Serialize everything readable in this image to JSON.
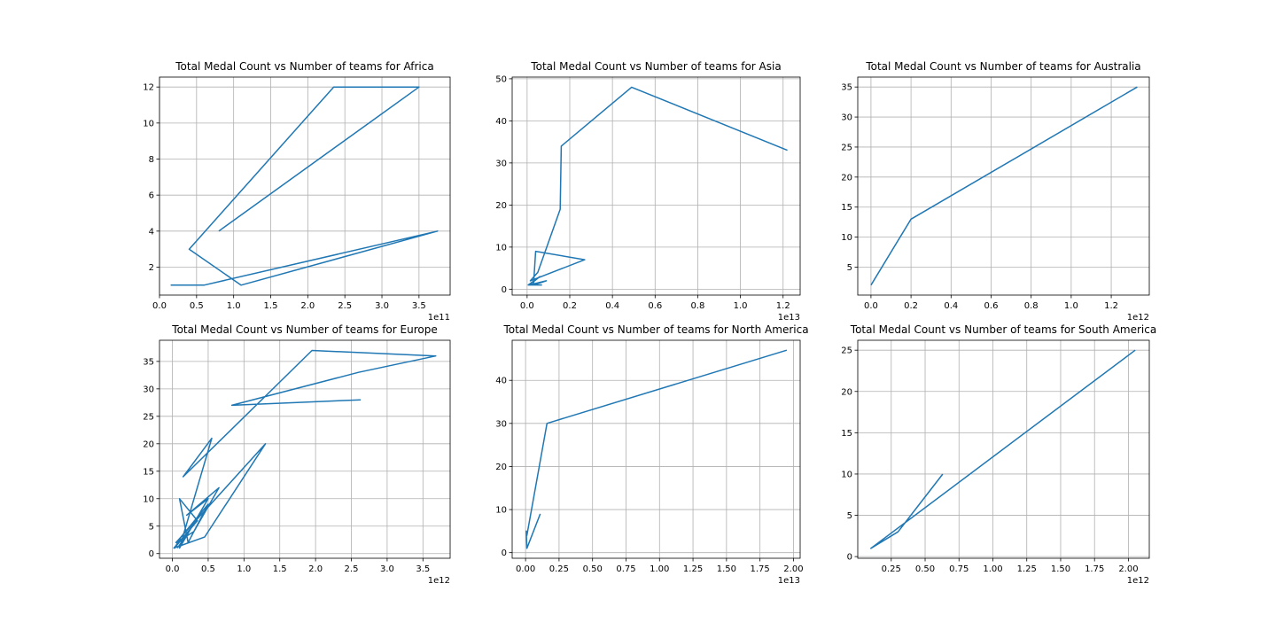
{
  "figure": {
    "background": "#ffffff",
    "line_color": "#1f77b4",
    "grid_color": "#b0b0b0"
  },
  "chart_data": [
    {
      "type": "line",
      "title": "Total Medal Count vs Number of teams for Africa",
      "xlabel": "",
      "ylabel": "",
      "x_offset_label": "1e11",
      "xlim": [
        0,
        3.92
      ],
      "ylim": [
        0.45,
        12.55
      ],
      "xticks": [
        0,
        0.5,
        1.0,
        1.5,
        2.0,
        2.5,
        3.0,
        3.5
      ],
      "xtick_labels": [
        "0.0",
        "0.5",
        "1.0",
        "1.5",
        "2.0",
        "2.5",
        "3.0",
        "3.5"
      ],
      "yticks": [
        2,
        4,
        6,
        8,
        10,
        12
      ],
      "ytick_labels": [
        "2",
        "4",
        "6",
        "8",
        "10",
        "12"
      ],
      "grid": true,
      "series": [
        {
          "x": [
            0.8,
            3.5,
            2.35,
            0.4,
            1.1,
            3.75,
            0.6,
            0.15
          ],
          "y": [
            4,
            12,
            12,
            3,
            1,
            4,
            1,
            1
          ]
        }
      ]
    },
    {
      "type": "line",
      "title": "Total Medal Count vs Number of teams for Asia",
      "xlabel": "",
      "ylabel": "",
      "x_offset_label": "1e13",
      "xlim": [
        -0.07,
        1.28
      ],
      "ylim": [
        -1.4,
        50.4
      ],
      "xticks": [
        0,
        0.2,
        0.4,
        0.6,
        0.8,
        1.0,
        1.2
      ],
      "xtick_labels": [
        "0.0",
        "0.2",
        "0.4",
        "0.6",
        "0.8",
        "1.0",
        "1.2"
      ],
      "yticks": [
        0,
        10,
        20,
        30,
        40,
        50
      ],
      "ytick_labels": [
        "0",
        "10",
        "20",
        "30",
        "40",
        "50"
      ],
      "grid": true,
      "series": [
        {
          "x": [
            1.22,
            0.49,
            0.16,
            0.155,
            0.05,
            0.015,
            0.27,
            0.04,
            0.03,
            0.09,
            0.01,
            0.06,
            0.005,
            0.07
          ],
          "y": [
            33,
            48,
            34,
            19,
            4,
            2,
            7,
            9,
            1,
            2,
            1,
            3,
            1,
            1
          ]
        }
      ]
    },
    {
      "type": "line",
      "title": "Total Medal Count vs Number of teams for Australia",
      "xlabel": "",
      "ylabel": "",
      "x_offset_label": "1e12",
      "xlim": [
        -0.066,
        1.39
      ],
      "ylim": [
        0.35,
        36.65
      ],
      "xticks": [
        0,
        0.2,
        0.4,
        0.6,
        0.8,
        1.0,
        1.2
      ],
      "xtick_labels": [
        "0.0",
        "0.2",
        "0.4",
        "0.6",
        "0.8",
        "1.0",
        "1.2"
      ],
      "yticks": [
        5,
        10,
        15,
        20,
        25,
        30,
        35
      ],
      "ytick_labels": [
        "5",
        "10",
        "15",
        "20",
        "25",
        "30",
        "35"
      ],
      "grid": true,
      "series": [
        {
          "x": [
            0.0,
            0.2,
            1.33
          ],
          "y": [
            2,
            13,
            35
          ]
        }
      ]
    },
    {
      "type": "line",
      "title": "Total Medal Count vs Number of teams for Europe",
      "xlabel": "",
      "ylabel": "",
      "x_offset_label": "1e12",
      "xlim": [
        -0.18,
        3.88
      ],
      "ylim": [
        -0.85,
        38.85
      ],
      "xticks": [
        0,
        0.5,
        1.0,
        1.5,
        2.0,
        2.5,
        3.0,
        3.5
      ],
      "xtick_labels": [
        "0.0",
        "0.5",
        "1.0",
        "1.5",
        "2.0",
        "2.5",
        "3.0",
        "3.5"
      ],
      "yticks": [
        0,
        5,
        10,
        15,
        20,
        25,
        30,
        35
      ],
      "ytick_labels": [
        "0",
        "5",
        "10",
        "15",
        "20",
        "25",
        "30",
        "35"
      ],
      "grid": true,
      "series": [
        {
          "x": [
            2.63,
            0.83,
            2.6,
            3.68,
            1.95,
            0.15,
            0.55,
            0.1,
            0.5,
            0.2,
            0.65,
            0.3,
            0.05,
            1.3,
            0.45,
            0.02,
            0.35,
            0.1,
            0.22,
            0.5,
            0.12,
            0.03,
            0.28,
            0.07
          ],
          "y": [
            28,
            27,
            33,
            36,
            37,
            14,
            21,
            1,
            10,
            7,
            12,
            4,
            2,
            20,
            3,
            1,
            6,
            10,
            2,
            9,
            3,
            1,
            5,
            1
          ]
        }
      ]
    },
    {
      "type": "line",
      "title": "Total Medal Count vs Number of teams for North America",
      "xlabel": "",
      "ylabel": "",
      "x_offset_label": "1e13",
      "xlim": [
        -0.1,
        2.05
      ],
      "ylim": [
        -1.3,
        49.3
      ],
      "xticks": [
        0,
        0.25,
        0.5,
        0.75,
        1.0,
        1.25,
        1.5,
        1.75,
        2.0
      ],
      "xtick_labels": [
        "0.00",
        "0.25",
        "0.50",
        "0.75",
        "1.00",
        "1.25",
        "1.50",
        "1.75",
        "2.00"
      ],
      "yticks": [
        0,
        10,
        20,
        30,
        40
      ],
      "ytick_labels": [
        "0",
        "10",
        "20",
        "30",
        "40"
      ],
      "grid": true,
      "series": [
        {
          "x": [
            1.95,
            0.16,
            0.01,
            0.005,
            0.01,
            0.11
          ],
          "y": [
            47,
            30,
            4,
            5,
            1,
            9
          ]
        }
      ]
    },
    {
      "type": "line",
      "title": "Total Medal Count vs Number of teams for South America",
      "xlabel": "",
      "ylabel": "",
      "x_offset_label": "1e12",
      "xlim": [
        0.003,
        2.154
      ],
      "ylim": [
        -0.2,
        26.2
      ],
      "xticks": [
        0.25,
        0.5,
        0.75,
        1.0,
        1.25,
        1.5,
        1.75,
        2.0
      ],
      "xtick_labels": [
        "0.25",
        "0.50",
        "0.75",
        "1.00",
        "1.25",
        "1.50",
        "1.75",
        "2.00"
      ],
      "yticks": [
        0,
        5,
        10,
        15,
        20,
        25
      ],
      "ytick_labels": [
        "0",
        "5",
        "10",
        "15",
        "20",
        "25"
      ],
      "grid": true,
      "series": [
        {
          "x": [
            2.05,
            0.1,
            0.3,
            0.63
          ],
          "y": [
            25,
            1,
            3,
            10
          ]
        }
      ]
    }
  ]
}
